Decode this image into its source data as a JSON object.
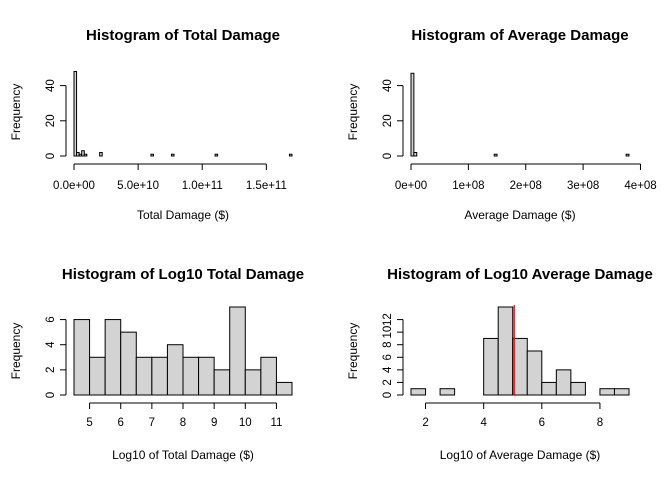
{
  "chart_data": [
    {
      "type": "bar",
      "title": "Histogram of Total Damage",
      "xlabel": "Total Damage ($)",
      "ylabel": "Frequency",
      "xlim": [
        0,
        170000000000
      ],
      "ylim": [
        0,
        50
      ],
      "x_ticks": [
        0,
        50000000000,
        100000000000,
        150000000000
      ],
      "x_tick_labels": [
        "0.0e+00",
        "5.0e+10",
        "1.0e+11",
        "1.5e+11"
      ],
      "y_ticks": [
        0,
        20,
        40
      ],
      "y_tick_labels": [
        "0",
        "20",
        "40"
      ],
      "bin_edges": [
        0,
        2000000000,
        4000000000,
        6000000000,
        8000000000,
        10000000000,
        12000000000,
        14000000000,
        16000000000,
        18000000000,
        20000000000,
        22000000000,
        24000000000,
        26000000000,
        28000000000,
        30000000000,
        32000000000,
        34000000000,
        36000000000,
        38000000000,
        40000000000,
        42000000000,
        44000000000,
        46000000000,
        48000000000,
        50000000000,
        52000000000,
        54000000000,
        56000000000,
        58000000000,
        60000000000,
        62000000000,
        64000000000,
        66000000000,
        68000000000,
        70000000000,
        72000000000,
        74000000000,
        76000000000,
        78000000000,
        80000000000,
        82000000000,
        84000000000,
        86000000000,
        88000000000,
        90000000000,
        92000000000,
        94000000000,
        96000000000,
        98000000000,
        100000000000,
        102000000000,
        104000000000,
        106000000000,
        108000000000,
        110000000000,
        112000000000,
        114000000000,
        116000000000,
        118000000000,
        120000000000,
        122000000000,
        124000000000,
        126000000000,
        128000000000,
        130000000000,
        132000000000,
        134000000000,
        136000000000,
        138000000000,
        140000000000,
        142000000000,
        144000000000,
        146000000000,
        148000000000,
        150000000000,
        152000000000,
        154000000000,
        156000000000,
        158000000000,
        160000000000,
        162000000000,
        164000000000,
        166000000000,
        168000000000,
        170000000000
      ],
      "counts": [
        48,
        2,
        1,
        3,
        1,
        0,
        0,
        0,
        0,
        0,
        2,
        0,
        0,
        0,
        0,
        0,
        0,
        0,
        0,
        0,
        0,
        0,
        0,
        0,
        0,
        0,
        0,
        0,
        0,
        0,
        1,
        0,
        0,
        0,
        0,
        0,
        0,
        0,
        1,
        0,
        0,
        0,
        0,
        0,
        0,
        0,
        0,
        0,
        0,
        0,
        0,
        0,
        0,
        0,
        0,
        1,
        0,
        0,
        0,
        0,
        0,
        0,
        0,
        0,
        0,
        0,
        0,
        0,
        0,
        0,
        0,
        0,
        0,
        0,
        0,
        0,
        0,
        0,
        0,
        0,
        0,
        0,
        0,
        0,
        1
      ],
      "bar_fill": "#d3d3d3",
      "bar_stroke": "#000000"
    },
    {
      "type": "bar",
      "title": "Histogram of Average Damage",
      "xlabel": "Average Damage ($)",
      "ylabel": "Frequency",
      "xlim": [
        0,
        380000000
      ],
      "ylim": [
        0,
        50
      ],
      "x_ticks": [
        0,
        100000000,
        200000000,
        300000000,
        400000000
      ],
      "x_tick_labels": [
        "0e+00",
        "1e+08",
        "2e+08",
        "3e+08",
        "4e+08"
      ],
      "y_ticks": [
        0,
        20,
        40
      ],
      "y_tick_labels": [
        "0",
        "20",
        "40"
      ],
      "bin_edges": [
        0,
        5000000,
        10000000,
        15000000,
        20000000,
        25000000,
        30000000,
        35000000,
        40000000,
        45000000,
        50000000,
        55000000,
        60000000,
        65000000,
        70000000,
        75000000,
        80000000,
        85000000,
        90000000,
        95000000,
        100000000,
        105000000,
        110000000,
        115000000,
        120000000,
        125000000,
        130000000,
        135000000,
        140000000,
        145000000,
        150000000,
        155000000,
        160000000,
        165000000,
        170000000,
        175000000,
        180000000,
        185000000,
        190000000,
        195000000,
        200000000,
        205000000,
        210000000,
        215000000,
        220000000,
        225000000,
        230000000,
        235000000,
        240000000,
        245000000,
        250000000,
        255000000,
        260000000,
        265000000,
        270000000,
        275000000,
        280000000,
        285000000,
        290000000,
        295000000,
        300000000,
        305000000,
        310000000,
        315000000,
        320000000,
        325000000,
        330000000,
        335000000,
        340000000,
        345000000,
        350000000,
        355000000,
        360000000,
        365000000,
        370000000,
        375000000,
        380000000
      ],
      "counts": [
        47,
        2,
        0,
        0,
        0,
        0,
        0,
        0,
        0,
        0,
        0,
        0,
        0,
        0,
        0,
        0,
        0,
        0,
        0,
        0,
        0,
        0,
        0,
        0,
        0,
        0,
        0,
        0,
        0,
        1,
        0,
        0,
        0,
        0,
        0,
        0,
        0,
        0,
        0,
        0,
        0,
        0,
        0,
        0,
        0,
        0,
        0,
        0,
        0,
        0,
        0,
        0,
        0,
        0,
        0,
        0,
        0,
        0,
        0,
        0,
        0,
        0,
        0,
        0,
        0,
        0,
        0,
        0,
        0,
        0,
        0,
        0,
        0,
        0,
        0,
        1
      ],
      "bar_fill": "#d3d3d3",
      "bar_stroke": "#000000"
    },
    {
      "type": "bar",
      "title": "Histogram of Log10 Total Damage",
      "xlabel": "Log10 of Total Damage ($)",
      "ylabel": "Frequency",
      "xlim": [
        4.5,
        11.5
      ],
      "ylim": [
        0,
        7
      ],
      "x_ticks": [
        5,
        6,
        7,
        8,
        9,
        10,
        11
      ],
      "x_tick_labels": [
        "5",
        "6",
        "7",
        "8",
        "9",
        "10",
        "11"
      ],
      "y_ticks": [
        0,
        2,
        4,
        6
      ],
      "y_tick_labels": [
        "0",
        "2",
        "4",
        "6"
      ],
      "bin_edges": [
        4.5,
        5,
        5.5,
        6,
        6.5,
        7,
        7.5,
        8,
        8.5,
        9,
        9.5,
        10,
        10.5,
        11,
        11.5
      ],
      "counts": [
        6,
        3,
        6,
        5,
        3,
        3,
        4,
        3,
        3,
        2,
        7,
        2,
        3,
        1
      ],
      "bar_fill": "#d3d3d3",
      "bar_stroke": "#000000"
    },
    {
      "type": "bar",
      "title": "Histogram of Log10 Average Damage",
      "xlabel": "Log10 of Average Damage ($)",
      "ylabel": "Frequency",
      "xlim": [
        1.5,
        9
      ],
      "ylim": [
        0,
        14
      ],
      "x_ticks": [
        2,
        4,
        6,
        8
      ],
      "x_tick_labels": [
        "2",
        "4",
        "6",
        "8"
      ],
      "y_ticks": [
        0,
        2,
        4,
        6,
        8,
        10,
        12
      ],
      "y_tick_labels": [
        "0",
        "2",
        "4",
        "6",
        "8",
        "10",
        "12"
      ],
      "bin_edges": [
        1.5,
        2,
        2.5,
        3,
        3.5,
        4,
        4.5,
        5,
        5.5,
        6,
        6.5,
        7,
        7.5,
        8,
        8.5,
        9
      ],
      "counts": [
        1,
        0,
        1,
        0,
        0,
        9,
        14,
        9,
        7,
        2,
        4,
        2,
        0,
        1,
        1
      ],
      "vline_x": 5.05,
      "vline_color": "#ff0000",
      "bar_fill": "#d3d3d3",
      "bar_stroke": "#000000"
    }
  ]
}
